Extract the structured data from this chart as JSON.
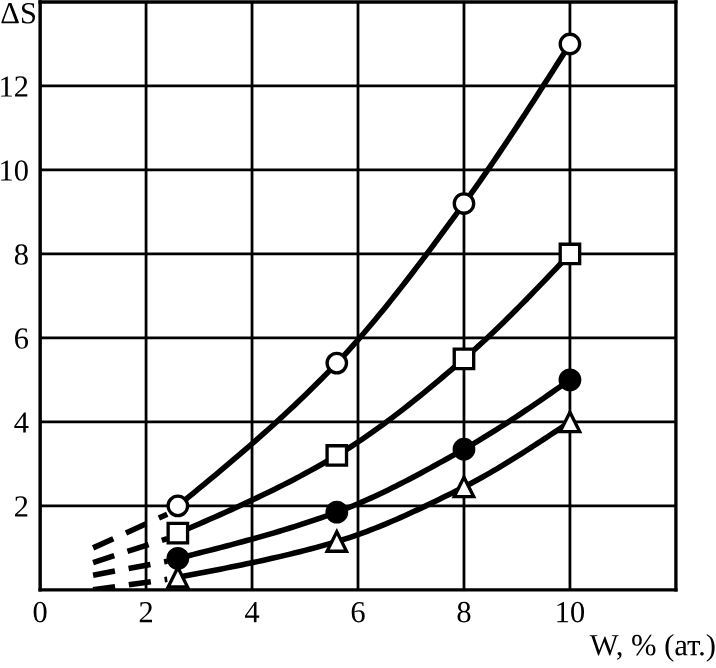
{
  "chart_data": {
    "type": "line",
    "xlabel": "W, % (ат.)",
    "ylabel": "ΔS",
    "xlim": [
      0,
      12
    ],
    "ylim": [
      0,
      14
    ],
    "xticks": [
      0,
      2,
      4,
      6,
      8,
      10
    ],
    "yticks": [
      2,
      4,
      6,
      8,
      10,
      12
    ],
    "grid": true,
    "series": [
      {
        "x": [
          2.6,
          5.6,
          8,
          10
        ],
        "values": [
          2.0,
          5.4,
          9.2,
          13.0
        ],
        "color": "#000000",
        "marker": "circle",
        "colors": [
          "#ffffff",
          "#ffffff",
          "#ffffff",
          "#ffffff"
        ],
        "line_style": "solid"
      },
      {
        "x": [
          2.6,
          5.6,
          8,
          10
        ],
        "values": [
          1.35,
          3.2,
          5.5,
          8.0
        ],
        "color": "#000000",
        "marker": "square",
        "colors": [
          "#ffffff",
          "#ffffff",
          "#ffffff",
          "#ffffff"
        ],
        "line_style": "solid"
      },
      {
        "x": [
          2.6,
          5.6,
          8,
          10
        ],
        "values": [
          0.75,
          1.85,
          3.35,
          5.0
        ],
        "color": "#000000",
        "marker": "circle",
        "colors": [
          "#000000",
          "#000000",
          "#000000",
          "#000000"
        ],
        "line_style": "solid"
      },
      {
        "x": [
          2.6,
          5.6,
          8,
          10
        ],
        "values": [
          0.3,
          1.15,
          2.45,
          4.0
        ],
        "color": "#000000",
        "marker": "triangle",
        "colors": [
          "#ffffff",
          "#ffffff",
          "#ffffff",
          "#ffffff"
        ],
        "line_style": "solid"
      },
      {
        "x": [
          1,
          2.4
        ],
        "values": [
          1.0,
          1.8
        ],
        "color": "#000000",
        "marker": "none",
        "line_style": "dashed"
      },
      {
        "x": [
          1,
          2.4
        ],
        "values": [
          0.65,
          1.22
        ],
        "color": "#000000",
        "marker": "none",
        "line_style": "dashed"
      },
      {
        "x": [
          1,
          2.4
        ],
        "values": [
          0.35,
          0.68
        ],
        "color": "#000000",
        "marker": "none",
        "line_style": "dashed"
      },
      {
        "x": [
          1,
          2.4
        ],
        "values": [
          0.0,
          0.25
        ],
        "color": "#000000",
        "marker": "none",
        "line_style": "dashed"
      }
    ]
  }
}
